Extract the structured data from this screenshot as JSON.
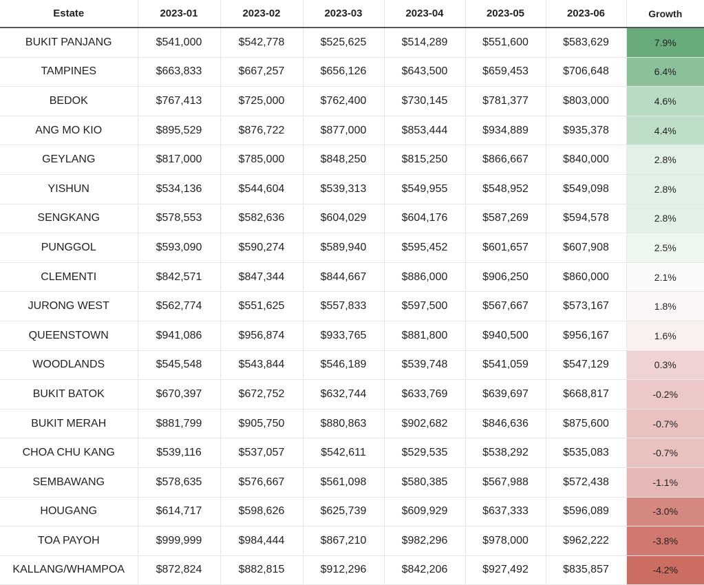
{
  "table": {
    "header": [
      "Estate",
      "2023-01",
      "2023-02",
      "2023-03",
      "2023-04",
      "2023-05",
      "2023-06",
      "Growth"
    ],
    "rows": [
      [
        "BUKIT PANJANG",
        "$541,000",
        "$542,778",
        "$525,625",
        "$514,289",
        "$551,600",
        "$583,629",
        "7.9%"
      ],
      [
        "TAMPINES",
        "$663,833",
        "$667,257",
        "$656,126",
        "$643,500",
        "$659,453",
        "$706,648",
        "6.4%"
      ],
      [
        "BEDOK",
        "$767,413",
        "$725,000",
        "$762,400",
        "$730,145",
        "$781,377",
        "$803,000",
        "4.6%"
      ],
      [
        "ANG MO KIO",
        "$895,529",
        "$876,722",
        "$877,000",
        "$853,444",
        "$934,889",
        "$935,378",
        "4.4%"
      ],
      [
        "GEYLANG",
        "$817,000",
        "$785,000",
        "$848,250",
        "$815,250",
        "$866,667",
        "$840,000",
        "2.8%"
      ],
      [
        "YISHUN",
        "$534,136",
        "$544,604",
        "$539,313",
        "$549,955",
        "$548,952",
        "$549,098",
        "2.8%"
      ],
      [
        "SENGKANG",
        "$578,553",
        "$582,636",
        "$604,029",
        "$604,176",
        "$587,269",
        "$594,578",
        "2.8%"
      ],
      [
        "PUNGGOL",
        "$593,090",
        "$590,274",
        "$589,940",
        "$595,452",
        "$601,657",
        "$607,908",
        "2.5%"
      ],
      [
        "CLEMENTI",
        "$842,571",
        "$847,344",
        "$844,667",
        "$886,000",
        "$906,250",
        "$860,000",
        "2.1%"
      ],
      [
        "JURONG WEST",
        "$562,774",
        "$551,625",
        "$557,833",
        "$597,500",
        "$567,667",
        "$573,167",
        "1.8%"
      ],
      [
        "QUEENSTOWN",
        "$941,086",
        "$956,874",
        "$933,765",
        "$881,800",
        "$940,500",
        "$956,167",
        "1.6%"
      ],
      [
        "WOODLANDS",
        "$545,548",
        "$543,844",
        "$546,189",
        "$539,748",
        "$541,059",
        "$547,129",
        "0.3%"
      ],
      [
        "BUKIT BATOK",
        "$670,397",
        "$672,752",
        "$632,744",
        "$633,769",
        "$639,697",
        "$668,817",
        "-0.2%"
      ],
      [
        "BUKIT MERAH",
        "$881,799",
        "$905,750",
        "$880,863",
        "$902,682",
        "$846,636",
        "$875,600",
        "-0.7%"
      ],
      [
        "CHOA CHU KANG",
        "$539,116",
        "$537,057",
        "$542,611",
        "$529,535",
        "$538,292",
        "$535,083",
        "-0.7%"
      ],
      [
        "SEMBAWANG",
        "$578,635",
        "$576,667",
        "$561,098",
        "$580,385",
        "$567,988",
        "$572,438",
        "-1.1%"
      ],
      [
        "HOUGANG",
        "$614,717",
        "$598,626",
        "$625,739",
        "$609,929",
        "$637,333",
        "$596,089",
        "-3.0%"
      ],
      [
        "TOA PAYOH",
        "$999,999",
        "$984,444",
        "$867,210",
        "$982,296",
        "$978,000",
        "$962,222",
        "-3.8%"
      ],
      [
        "KALLANG/WHAMPOA",
        "$872,824",
        "$882,815",
        "$912,296",
        "$842,206",
        "$927,492",
        "$835,857",
        "-4.2%"
      ]
    ],
    "growth_colors": [
      "#6aab7c",
      "#8cc09a",
      "#b9dbc2",
      "#bfdec7",
      "#e2f0e5",
      "#e2f0e5",
      "#e2f0e5",
      "#eef6f0",
      "#f9fbf9",
      "#fbf6f6",
      "#faf0f0",
      "#efd3d2",
      "#ecc9c8",
      "#e9c2c0",
      "#e9c2c0",
      "#e5b8b5",
      "#d5887f",
      "#d0786f",
      "#cc6d62"
    ]
  }
}
